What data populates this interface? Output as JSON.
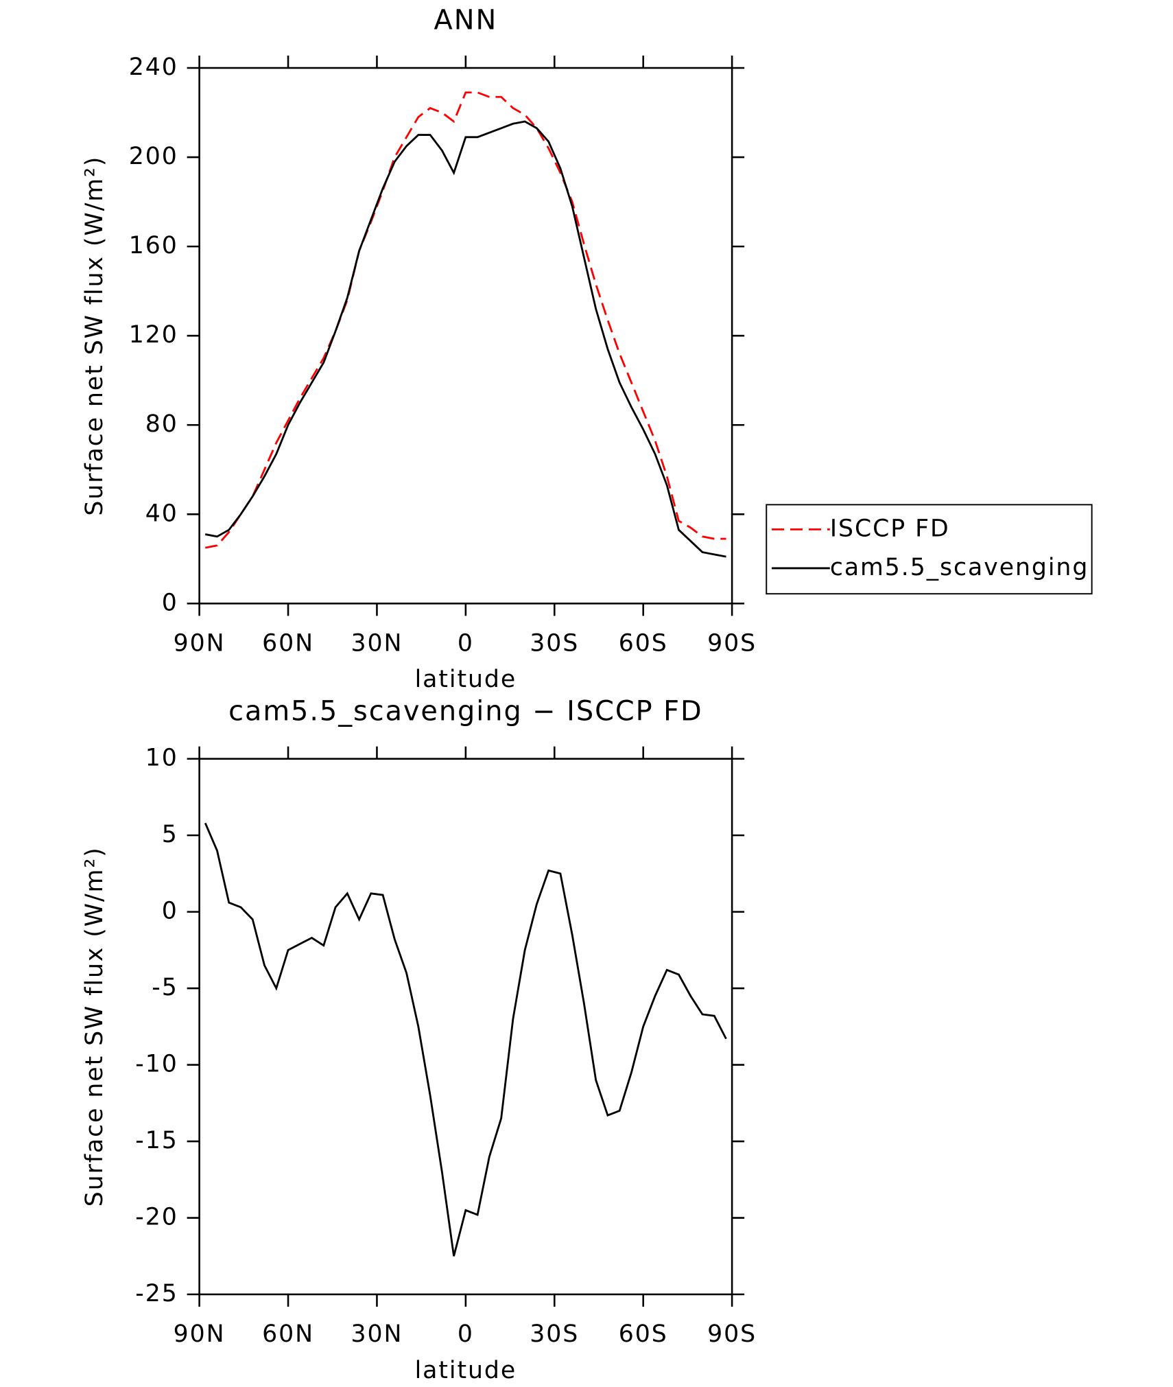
{
  "chart_data": [
    {
      "type": "line",
      "title": "ANN",
      "xlabel": "latitude",
      "ylabel": "Surface net SW flux (W/m²)",
      "x": [
        88,
        84,
        80,
        76,
        72,
        68,
        64,
        60,
        56,
        52,
        48,
        44,
        40,
        36,
        32,
        28,
        24,
        20,
        16,
        12,
        8,
        4,
        0,
        -4,
        -8,
        -12,
        -16,
        -20,
        -24,
        -28,
        -32,
        -36,
        -40,
        -44,
        -48,
        -52,
        -56,
        -60,
        -64,
        -68,
        -72,
        -76,
        -80,
        -84,
        -88
      ],
      "xlim": [
        90,
        -90
      ],
      "xticks": [
        {
          "value": 90,
          "label": "90N"
        },
        {
          "value": 60,
          "label": "60N"
        },
        {
          "value": 30,
          "label": "30N"
        },
        0,
        {
          "value": -30,
          "label": "30S"
        },
        {
          "value": -60,
          "label": "60S"
        },
        {
          "value": -90,
          "label": "90S"
        }
      ],
      "ylim": [
        0,
        240
      ],
      "yticks": [
        0,
        40,
        80,
        120,
        160,
        200,
        240
      ],
      "legend": "outside-right",
      "series": [
        {
          "name": "ISCCP FD",
          "color": "#ff0000",
          "dash": true,
          "values": [
            25,
            26,
            32,
            40,
            48,
            60,
            72,
            82,
            92,
            101,
            110,
            122,
            136,
            158,
            171,
            185,
            200,
            209,
            218,
            222,
            220,
            216,
            229,
            229,
            227,
            227,
            222,
            219,
            213,
            204,
            193,
            180,
            161,
            143,
            127,
            112,
            99,
            86,
            73,
            57,
            37,
            34,
            30,
            29,
            29
          ]
        },
        {
          "name": "cam5.5_scavenging",
          "color": "#000000",
          "dash": false,
          "values": [
            31,
            30,
            33,
            40,
            48,
            57,
            67,
            80,
            90,
            99,
            108,
            122,
            137,
            158,
            172,
            186,
            198,
            205,
            210,
            210,
            203,
            193,
            209,
            209,
            211,
            213,
            215,
            216,
            213,
            207,
            195,
            178,
            155,
            132,
            114,
            99,
            88,
            78,
            67,
            53,
            33,
            28,
            23,
            22,
            21
          ]
        }
      ]
    },
    {
      "type": "line",
      "title": "cam5.5_scavenging − ISCCP FD",
      "xlabel": "latitude",
      "ylabel": "Surface net SW flux (W/m²)",
      "x": [
        88,
        84,
        80,
        76,
        72,
        68,
        64,
        60,
        56,
        52,
        48,
        44,
        40,
        36,
        32,
        28,
        24,
        20,
        16,
        12,
        8,
        4,
        0,
        -4,
        -8,
        -12,
        -16,
        -20,
        -24,
        -28,
        -32,
        -36,
        -40,
        -44,
        -48,
        -52,
        -56,
        -60,
        -64,
        -68,
        -72,
        -76,
        -80,
        -84,
        -88
      ],
      "xlim": [
        90,
        -90
      ],
      "xticks": [
        {
          "value": 90,
          "label": "90N"
        },
        {
          "value": 60,
          "label": "60N"
        },
        {
          "value": 30,
          "label": "30N"
        },
        0,
        {
          "value": -30,
          "label": "30S"
        },
        {
          "value": -60,
          "label": "60S"
        },
        {
          "value": -90,
          "label": "90S"
        }
      ],
      "ylim": [
        -25,
        10
      ],
      "yticks": [
        -25,
        -20,
        -15,
        -10,
        -5,
        0,
        5,
        10
      ],
      "series": [
        {
          "color": "#000000",
          "dash": false,
          "values": [
            5.8,
            4.0,
            0.6,
            0.3,
            -0.5,
            -3.5,
            -5,
            -2.5,
            -2.1,
            -1.7,
            -2.2,
            0.3,
            1.2,
            -0.5,
            1.2,
            1.1,
            -1.8,
            -4,
            -7.5,
            -12,
            -17,
            -22.5,
            -19.5,
            -19.8,
            -16,
            -13.5,
            -7,
            -2.5,
            0.5,
            2.7,
            2.5,
            -1.5,
            -6,
            -11,
            -13.3,
            -13,
            -10.5,
            -7.5,
            -5.5,
            -3.8,
            -4.1,
            -5.5,
            -6.7,
            -6.8,
            -8.3
          ]
        }
      ]
    }
  ]
}
